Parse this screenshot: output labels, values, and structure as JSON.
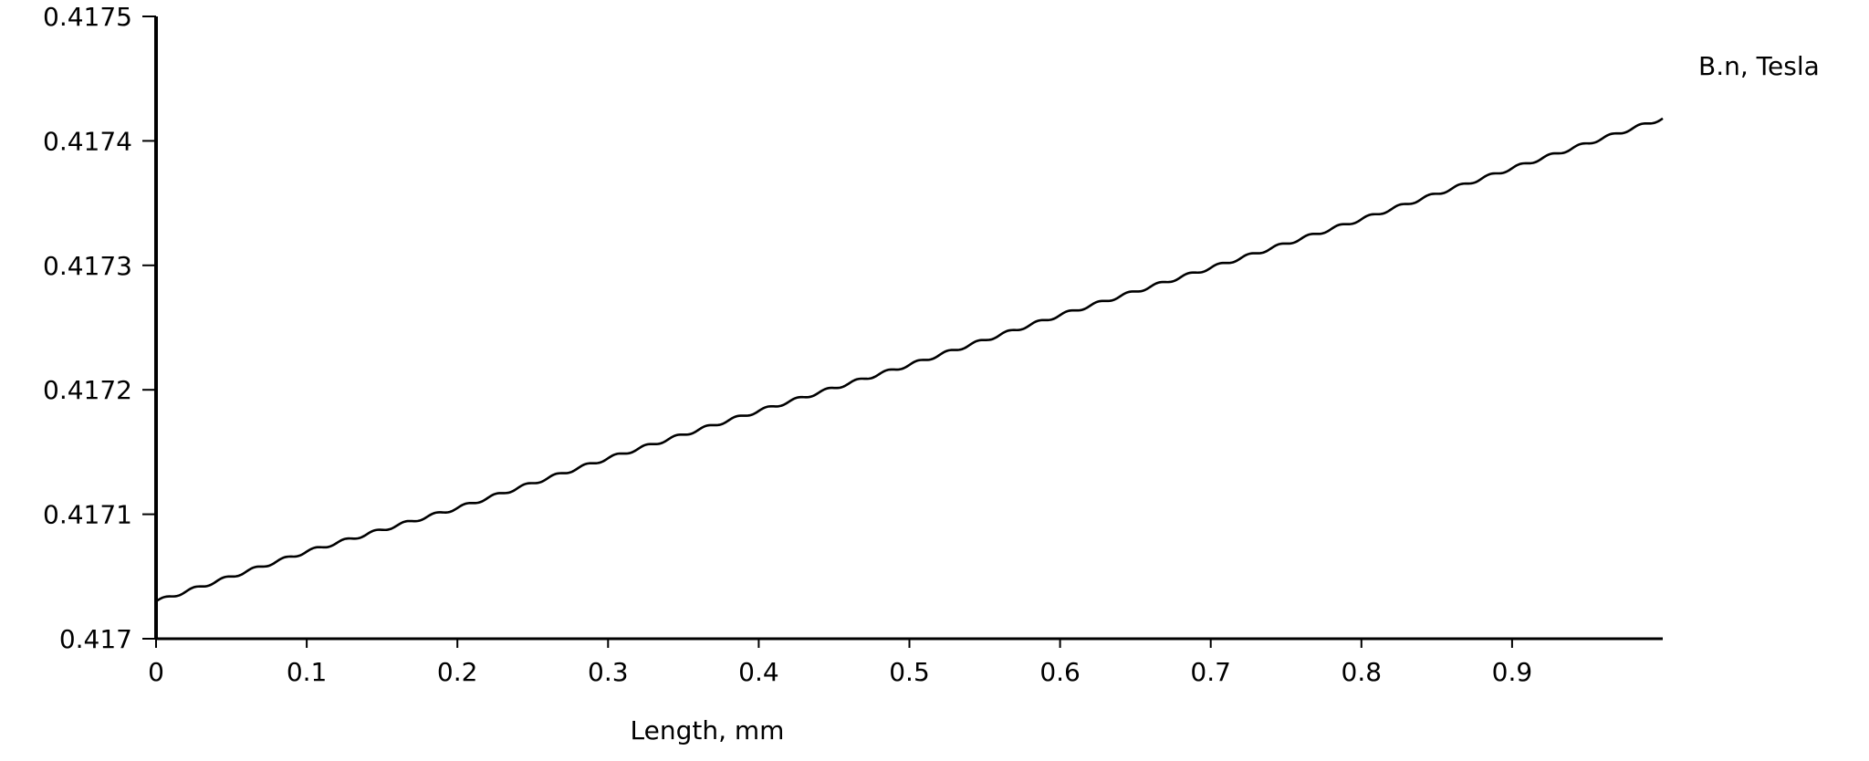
{
  "chart_data": {
    "type": "line",
    "title": "",
    "xlabel": "Length, mm",
    "ylabel": "B.n, Tesla",
    "xlim": [
      0,
      1.0
    ],
    "ylim": [
      0.417,
      0.4175
    ],
    "x_ticks": [
      "0",
      "0.1",
      "0.2",
      "0.3",
      "0.4",
      "0.5",
      "0.6",
      "0.7",
      "0.8",
      "0.9"
    ],
    "y_ticks": [
      "0.417",
      "0.4171",
      "0.4172",
      "0.4173",
      "0.4174",
      "0.4175"
    ],
    "grid": false,
    "series": [
      {
        "values_x": [
          0,
          0.1,
          0.2,
          0.3,
          0.4,
          0.5,
          0.6,
          0.7,
          0.8,
          0.9,
          1.0
        ],
        "values_y": [
          0.41703,
          0.41707,
          0.417105,
          0.417145,
          0.417183,
          0.41722,
          0.41726,
          0.417298,
          0.417337,
          0.417378,
          0.417418
        ],
        "color": "#000000",
        "ripple": true
      }
    ]
  }
}
